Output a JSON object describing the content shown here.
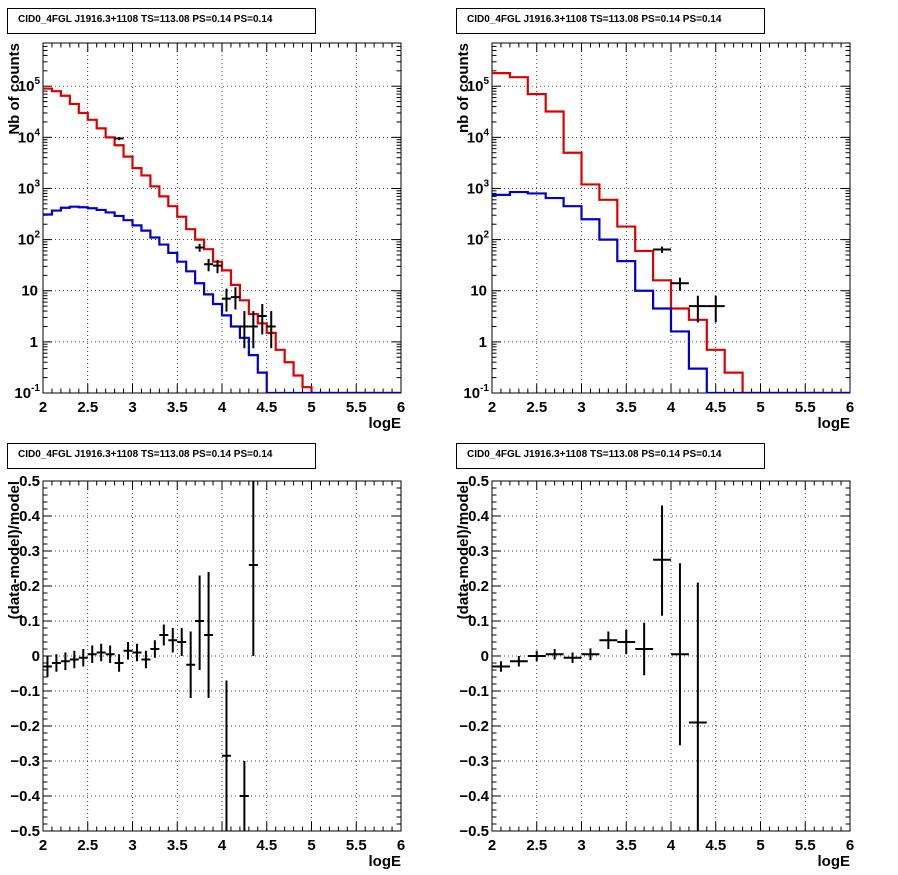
{
  "chart_data": [
    {
      "type": "line",
      "title": "CID0_4FGL J1916.3+1108 TS=113.08 PS=0.14 PS=0.14",
      "xlabel": "logE",
      "ylabel": "Nb of counts",
      "yscale": "log",
      "xlim": [
        2,
        6
      ],
      "ylim": [
        0.1,
        700000
      ],
      "grid": true,
      "x_tick_labels": [
        "2",
        "2.5",
        "3",
        "3.5",
        "4",
        "4.5",
        "5",
        "5.5",
        "6"
      ],
      "y_tick_labels": [
        "10^-1",
        "1",
        "10",
        "10^2",
        "10^3",
        "10^4",
        "10^5"
      ],
      "bin_width": 0.1,
      "series": [
        {
          "color": "#dd0000",
          "style": "histogram",
          "x": [
            2.0,
            2.1,
            2.2,
            2.3,
            2.4,
            2.5,
            2.6,
            2.7,
            2.8,
            2.9,
            3.0,
            3.1,
            3.2,
            3.3,
            3.4,
            3.5,
            3.6,
            3.7,
            3.8,
            3.9,
            4.0,
            4.1,
            4.2,
            4.3,
            4.4,
            4.5,
            4.6,
            4.7,
            4.8,
            4.9,
            5.0,
            5.1,
            5.2,
            5.3,
            5.4,
            5.5,
            5.6,
            5.7,
            5.8,
            5.9
          ],
          "values": [
            90000,
            80000,
            65000,
            45000,
            30000,
            22000,
            15000,
            10000,
            7000,
            4200,
            2500,
            1800,
            1100,
            700,
            450,
            280,
            160,
            100,
            65,
            37,
            25,
            13,
            6.5,
            3.5,
            2.3,
            1.5,
            0.7,
            0.4,
            0.22,
            0.13,
            0.1,
            0.1,
            0.1,
            0.1,
            0.1,
            0.1,
            0.1,
            0.1,
            0.1,
            0.1
          ]
        },
        {
          "color": "#0000cc",
          "style": "histogram",
          "x": [
            2.0,
            2.1,
            2.2,
            2.3,
            2.4,
            2.5,
            2.6,
            2.7,
            2.8,
            2.9,
            3.0,
            3.1,
            3.2,
            3.3,
            3.4,
            3.5,
            3.6,
            3.7,
            3.8,
            3.9,
            4.0,
            4.1,
            4.2,
            4.3,
            4.4,
            4.5,
            4.6,
            4.7,
            4.8,
            4.9,
            5.0,
            5.1,
            5.2,
            5.3,
            5.4,
            5.5,
            5.6,
            5.7,
            5.8,
            5.9
          ],
          "values": [
            310,
            370,
            420,
            440,
            430,
            410,
            380,
            340,
            290,
            240,
            190,
            150,
            110,
            80,
            55,
            37,
            24,
            14,
            8.5,
            5.5,
            3.3,
            2,
            1.2,
            0.55,
            0.25,
            0.1,
            0.1,
            0.1,
            0.1,
            0.1,
            0.1,
            0.1,
            0.1,
            0.1,
            0.1,
            0.1,
            0.1,
            0.1,
            0.1,
            0.1
          ]
        },
        {
          "color": "#000000",
          "style": "points",
          "x": [
            2.85,
            3.75,
            3.85,
            3.95,
            4.05,
            4.15,
            4.25,
            4.35,
            4.45,
            4.55
          ],
          "values": [
            9500,
            70,
            33,
            31,
            7,
            7.5,
            2,
            2,
            3.2,
            2
          ],
          "err_low": [
            8800,
            58,
            24,
            22,
            3.9,
            4.3,
            0.75,
            0.75,
            1.4,
            0.75
          ],
          "err_high": [
            10200,
            82,
            42,
            40,
            11,
            11.7,
            4,
            4,
            5.5,
            4
          ]
        }
      ]
    },
    {
      "type": "line",
      "title": "CID0_4FGL J1916.3+1108 TS=113.08 PS=0.14 PS=0.14",
      "xlabel": "logE",
      "ylabel": "nb of counts",
      "yscale": "log",
      "xlim": [
        2,
        6
      ],
      "ylim": [
        0.1,
        700000
      ],
      "grid": true,
      "x_tick_labels": [
        "2",
        "2.5",
        "3",
        "3.5",
        "4",
        "4.5",
        "5",
        "5.5",
        "6"
      ],
      "y_tick_labels": [
        "10^-1",
        "1",
        "10",
        "10^2",
        "10^3",
        "10^4",
        "10^5"
      ],
      "bin_width": 0.2,
      "series": [
        {
          "color": "#dd0000",
          "style": "histogram",
          "x": [
            2.0,
            2.2,
            2.4,
            2.6,
            2.8,
            3.0,
            3.2,
            3.4,
            3.6,
            3.8,
            4.0,
            4.2,
            4.4,
            4.6,
            4.8,
            5.0,
            5.2,
            5.4,
            5.6,
            5.8
          ],
          "values": [
            180000,
            150000,
            70000,
            32000,
            5000,
            1200,
            600,
            180,
            60,
            16,
            4.5,
            2.7,
            0.7,
            0.25,
            0.1,
            0.1,
            0.1,
            0.1,
            0.1,
            0.1
          ]
        },
        {
          "color": "#0000cc",
          "style": "histogram",
          "x": [
            2.0,
            2.2,
            2.4,
            2.6,
            2.8,
            3.0,
            3.2,
            3.4,
            3.6,
            3.8,
            4.0,
            4.2,
            4.4,
            4.6,
            4.8,
            5.0,
            5.2,
            5.4,
            5.6,
            5.8
          ],
          "values": [
            750,
            850,
            800,
            650,
            450,
            250,
            100,
            38,
            10,
            4.5,
            1.6,
            0.3,
            0.1,
            0.1,
            0.1,
            0.1,
            0.1,
            0.1,
            0.1,
            0.1
          ]
        },
        {
          "color": "#000000",
          "style": "points",
          "x": [
            3.9,
            4.1,
            4.3,
            4.5
          ],
          "values": [
            64,
            14,
            5,
            5
          ],
          "err_low": [
            55,
            10,
            2.4,
            2.4
          ],
          "err_high": [
            73,
            18,
            8,
            8
          ]
        }
      ]
    },
    {
      "type": "scatter",
      "title": "CID0_4FGL J1916.3+1108 TS=113.08 PS=0.14 PS=0.14",
      "xlabel": "logE",
      "ylabel": "(data-model)/model",
      "xlim": [
        2,
        6
      ],
      "ylim": [
        -0.5,
        0.5
      ],
      "grid": true,
      "x_tick_labels": [
        "2",
        "2.5",
        "3",
        "3.5",
        "4",
        "4.5",
        "5",
        "5.5",
        "6"
      ],
      "y_tick_labels": [
        "-0.5",
        "-0.4",
        "-0.3",
        "-0.2",
        "-0.1",
        "0",
        "0.1",
        "0.2",
        "0.3",
        "0.4",
        "0.5"
      ],
      "x_half_width": 0.05,
      "series": [
        {
          "color": "#000000",
          "x": [
            2.05,
            2.15,
            2.25,
            2.35,
            2.45,
            2.55,
            2.65,
            2.75,
            2.85,
            2.95,
            3.05,
            3.15,
            3.25,
            3.35,
            3.45,
            3.55,
            3.65,
            3.75,
            3.85,
            4.05,
            4.25,
            4.35
          ],
          "values": [
            -0.03,
            -0.02,
            -0.015,
            -0.01,
            -0.005,
            0.005,
            0.01,
            0.005,
            -0.02,
            0.015,
            0.01,
            -0.01,
            0.02,
            0.06,
            0.045,
            0.04,
            -0.025,
            0.1,
            0.06,
            -0.285,
            -0.4,
            0.26
          ],
          "err_low": [
            -0.06,
            -0.045,
            -0.04,
            -0.035,
            -0.03,
            -0.02,
            -0.015,
            -0.02,
            -0.045,
            -0.01,
            -0.015,
            -0.035,
            -0.005,
            0.03,
            0.01,
            0.0,
            -0.12,
            -0.04,
            -0.12,
            -0.5,
            -0.5,
            0.0
          ],
          "err_high": [
            0.0,
            0.005,
            0.01,
            0.015,
            0.02,
            0.03,
            0.035,
            0.03,
            0.005,
            0.04,
            0.035,
            0.015,
            0.045,
            0.09,
            0.08,
            0.08,
            0.07,
            0.23,
            0.24,
            -0.07,
            -0.3,
            0.5
          ]
        }
      ]
    },
    {
      "type": "scatter",
      "title": "CID0_4FGL J1916.3+1108 TS=113.08 PS=0.14 PS=0.14",
      "xlabel": "logE",
      "ylabel": "(data-model)/model",
      "xlim": [
        2,
        6
      ],
      "ylim": [
        -0.5,
        0.5
      ],
      "grid": true,
      "x_tick_labels": [
        "2",
        "2.5",
        "3",
        "3.5",
        "4",
        "4.5",
        "5",
        "5.5",
        "6"
      ],
      "y_tick_labels": [
        "-0.5",
        "-0.4",
        "-0.3",
        "-0.2",
        "-0.1",
        "0",
        "0.1",
        "0.2",
        "0.3",
        "0.4",
        "0.5"
      ],
      "x_half_width": 0.1,
      "series": [
        {
          "color": "#000000",
          "x": [
            2.1,
            2.3,
            2.5,
            2.7,
            2.9,
            3.1,
            3.3,
            3.5,
            3.7,
            3.9,
            4.1,
            4.3
          ],
          "values": [
            -0.03,
            -0.015,
            0.0,
            0.005,
            -0.005,
            0.005,
            0.045,
            0.04,
            0.02,
            0.275,
            0.005,
            -0.19
          ],
          "err_low": [
            -0.045,
            -0.03,
            -0.015,
            -0.01,
            -0.02,
            -0.012,
            0.02,
            0.005,
            -0.055,
            0.115,
            -0.255,
            -0.5
          ],
          "err_high": [
            -0.015,
            0.0,
            0.015,
            0.02,
            0.01,
            0.022,
            0.07,
            0.075,
            0.095,
            0.43,
            0.265,
            0.21
          ]
        }
      ]
    }
  ]
}
